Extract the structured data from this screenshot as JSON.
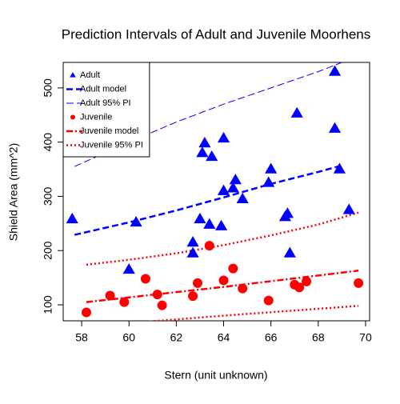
{
  "chart_data": {
    "type": "scatter",
    "title": "Prediction Intervals of Adult and Juvenile Moorhens",
    "x_label": "Stern (unit unknown)",
    "y_label": "Shield Area (mm^2)",
    "xlim": [
      57.22,
      70.17
    ],
    "ylim": [
      70.5,
      547
    ],
    "xticks": [
      58,
      60,
      62,
      64,
      66,
      68,
      70
    ],
    "yticks": [
      100,
      200,
      300,
      400,
      500
    ],
    "legend": "top-left",
    "series": [
      {
        "name": "Adult",
        "mode": "points",
        "marker": "triangle",
        "color": "#0000ff",
        "x": [
          57.6,
          60.3,
          60,
          62.7,
          62.7,
          63.0,
          63.1,
          63.2,
          63.4,
          63.5,
          63.9,
          64.0,
          64.0,
          64.4,
          64.5,
          64.8,
          65.9,
          66.0,
          66.6,
          66.7,
          66.8,
          67.1,
          68.7,
          68.7,
          68.9,
          69.3
        ],
        "values": [
          258,
          252,
          165,
          215,
          195,
          258,
          380,
          398,
          248,
          373,
          245,
          407,
          310,
          315,
          330,
          295,
          325,
          350,
          262,
          268,
          195,
          453,
          530,
          425,
          350,
          275
        ]
      },
      {
        "name": "Adult model",
        "mode": "line",
        "dash": "8,4",
        "width": 2.5,
        "color": "#0000ff",
        "x": [
          57.7,
          60,
          62,
          64,
          66,
          68,
          69
        ],
        "values": [
          229,
          252,
          274,
          298,
          323,
          345,
          357
        ]
      },
      {
        "name": "Adult 95% PI",
        "mode": "line",
        "dash": "9,4",
        "width": 1,
        "color": "#0000ff",
        "x": [
          57.7,
          60,
          62,
          64,
          66,
          68,
          69
        ],
        "values": [
          355,
          400,
          437,
          470,
          500,
          530,
          547
        ]
      },
      {
        "name": "Juvenile",
        "mode": "points",
        "marker": "circle",
        "color": "#ff0000",
        "x": [
          58.2,
          59.2,
          59.8,
          60.7,
          61.2,
          61.4,
          62.7,
          62.9,
          63.4,
          64.0,
          64.4,
          64.8,
          65.9,
          67.0,
          67.2,
          67.5,
          69.7
        ],
        "values": [
          86,
          117,
          105,
          148,
          119,
          99,
          116,
          140,
          209,
          145,
          167,
          130,
          108,
          137,
          132,
          143,
          140
        ]
      },
      {
        "name": "Juvenile model",
        "mode": "line",
        "dash": "8,3,2,3",
        "width": 2.5,
        "color": "#ff0000",
        "x": [
          58.2,
          64,
          69.7
        ],
        "values": [
          105,
          133,
          163
        ]
      },
      {
        "name": "Juvenile 95% PI",
        "mode": "line",
        "dash": "2,3",
        "width": 2.5,
        "color": "#ff0000",
        "x": [
          58.2,
          60,
          62,
          64,
          66,
          68,
          69.7
        ],
        "values": [
          174,
          183,
          195,
          210,
          228,
          248,
          270
        ]
      },
      {
        "name": "Juvenile 95% PI lower",
        "mode": "line",
        "legend": false,
        "dash": "2,3",
        "width": 2.5,
        "color": "#ff0000",
        "x": [
          58.2,
          64,
          69.7
        ],
        "values": [
          60,
          80,
          98
        ]
      }
    ]
  }
}
